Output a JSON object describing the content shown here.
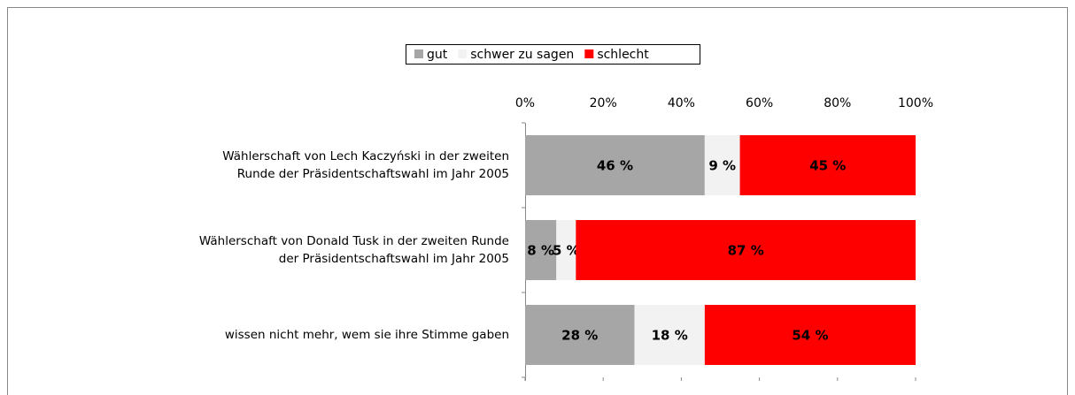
{
  "chart_data": {
    "type": "stacked-bar-horizontal",
    "categories": [
      "Wählerschaft von Lech Kaczyński in der zweiten\nRunde der Präsidentschaftswahl im Jahr 2005",
      "Wählerschaft von Donald Tusk in der zweiten Runde\nder Präsidentschaftswahl im Jahr 2005",
      "wissen nicht mehr, wem sie ihre Stimme gaben"
    ],
    "series": [
      {
        "name": "gut",
        "color": "#a6a6a6",
        "values": [
          46,
          8,
          28
        ],
        "value_labels": [
          "46 %",
          "8 %",
          "28 %"
        ]
      },
      {
        "name": "schwer zu sagen",
        "color": "#f2f2f2",
        "values": [
          9,
          5,
          18
        ],
        "value_labels": [
          "9 %",
          "5 %",
          "18 %"
        ]
      },
      {
        "name": "schlecht",
        "color": "#ff0000",
        "values": [
          45,
          87,
          54
        ],
        "value_labels": [
          "45 %",
          "87 %",
          "54 %"
        ]
      }
    ],
    "xlim": [
      0,
      100
    ],
    "xticks": [
      {
        "value": 0,
        "label": "0%"
      },
      {
        "value": 20,
        "label": "20%"
      },
      {
        "value": 40,
        "label": "40%"
      },
      {
        "value": 60,
        "label": "60%"
      },
      {
        "value": 80,
        "label": "80%"
      },
      {
        "value": 100,
        "label": "100%"
      }
    ],
    "legend": "top"
  }
}
